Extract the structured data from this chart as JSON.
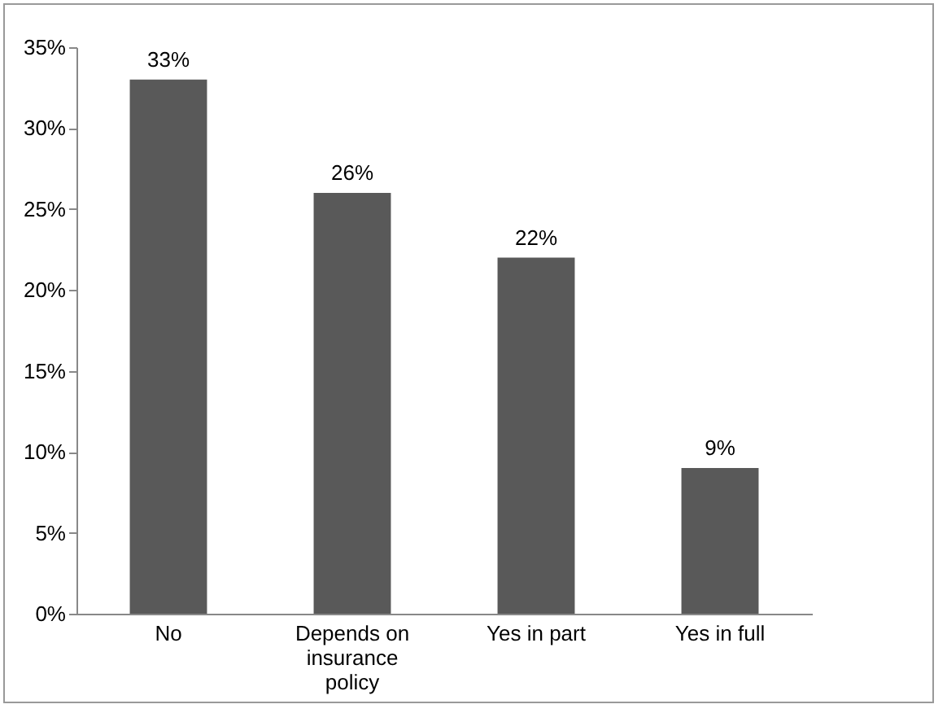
{
  "chart_data": {
    "type": "bar",
    "categories": [
      "No",
      "Depends on insurance policy",
      "Yes in part",
      "Yes in full"
    ],
    "values": [
      33,
      26,
      22,
      9
    ],
    "value_labels": [
      "33%",
      "26%",
      "22%",
      "9%"
    ],
    "color": "#595959",
    "ylim": [
      0,
      35
    ],
    "yticks": [
      {
        "value": 0,
        "label": "0%"
      },
      {
        "value": 5,
        "label": "5%"
      },
      {
        "value": 10,
        "label": "10%"
      },
      {
        "value": 15,
        "label": "15%"
      },
      {
        "value": 20,
        "label": "20%"
      },
      {
        "value": 25,
        "label": "25%"
      },
      {
        "value": 30,
        "label": "30%"
      },
      {
        "value": 35,
        "label": "35%"
      }
    ],
    "grid": false
  }
}
